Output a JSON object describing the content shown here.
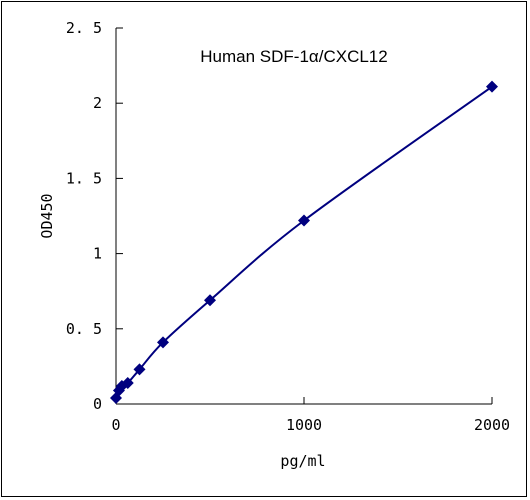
{
  "chart_data": {
    "type": "line",
    "title": "Human SDF-1α/CXCL12",
    "xlabel": "pg/ml",
    "ylabel": "OD450",
    "xlim": [
      0,
      2000
    ],
    "ylim": [
      0,
      2.5
    ],
    "x_ticks": [
      0,
      1000,
      2000
    ],
    "x_tick_labels": [
      "0",
      "1000",
      "2000"
    ],
    "y_ticks": [
      0,
      0.5,
      1,
      1.5,
      2,
      2.5
    ],
    "y_tick_labels": [
      "0",
      "0. 5",
      "1",
      "1. 5",
      "2",
      "2. 5"
    ],
    "grid": false,
    "series": [
      {
        "color": "#00007f",
        "marker": "diamond",
        "smooth": true,
        "points": [
          {
            "x": 0,
            "y": 0.04
          },
          {
            "x": 15.6,
            "y": 0.09
          },
          {
            "x": 31.2,
            "y": 0.12
          },
          {
            "x": 62.5,
            "y": 0.14
          },
          {
            "x": 125,
            "y": 0.23
          },
          {
            "x": 250,
            "y": 0.41
          },
          {
            "x": 500,
            "y": 0.69
          },
          {
            "x": 1000,
            "y": 1.22
          },
          {
            "x": 2000,
            "y": 2.11
          }
        ]
      }
    ]
  }
}
